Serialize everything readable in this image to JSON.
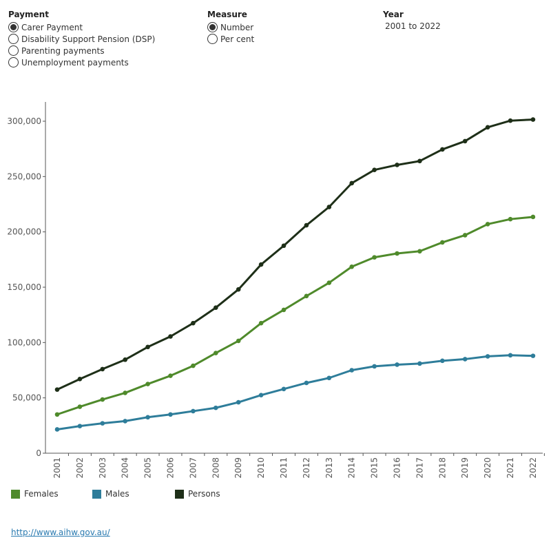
{
  "filters": {
    "payment": {
      "title": "Payment",
      "options": [
        "Carer Payment",
        "Disability Support Pension (DSP)",
        "Parenting payments",
        "Unemployment payments"
      ],
      "selected": 0
    },
    "measure": {
      "title": "Measure",
      "options": [
        "Number",
        "Per cent"
      ],
      "selected": 0
    },
    "year": {
      "title": "Year",
      "value": "2001 to 2022"
    }
  },
  "chart_data": {
    "type": "line",
    "title": "",
    "xlabel": "",
    "ylabel": "",
    "ylim": [
      0,
      320000
    ],
    "yticks": [
      0,
      50000,
      100000,
      150000,
      200000,
      250000,
      300000
    ],
    "ytick_labels": [
      "0",
      "50,000",
      "100,000",
      "150,000",
      "200,000",
      "250,000",
      "300,000"
    ],
    "categories": [
      "2001",
      "2002",
      "2003",
      "2004",
      "2005",
      "2006",
      "2007",
      "2008",
      "2009",
      "2010",
      "2011",
      "2012",
      "2013",
      "2014",
      "2015",
      "2016",
      "2017",
      "2018",
      "2019",
      "2020",
      "2021",
      "2022"
    ],
    "series": [
      {
        "name": "Females",
        "color": "#4f8a2b",
        "values": [
          35000,
          42000,
          48500,
          54500,
          62500,
          70000,
          79000,
          90500,
          101500,
          117500,
          129500,
          142000,
          154000,
          168500,
          177000,
          180500,
          182500,
          190500,
          197000,
          207000,
          211500,
          213500
        ]
      },
      {
        "name": "Males",
        "color": "#2e7d9a",
        "values": [
          21500,
          24500,
          27000,
          29000,
          32500,
          35000,
          38000,
          41000,
          46000,
          52500,
          58000,
          63500,
          68000,
          75000,
          78500,
          80000,
          81000,
          83500,
          85000,
          87500,
          88500,
          88000
        ]
      },
      {
        "name": "Persons",
        "color": "#1e2f18",
        "values": [
          57500,
          67000,
          76000,
          84500,
          96000,
          105500,
          117500,
          131500,
          148000,
          170500,
          187500,
          206000,
          222500,
          244000,
          256000,
          260500,
          264000,
          274500,
          282000,
          294500,
          300500,
          301500
        ]
      }
    ],
    "legend_position": "bottom-left"
  },
  "source": {
    "link_text": "http://www.aihw.gov.au/"
  }
}
